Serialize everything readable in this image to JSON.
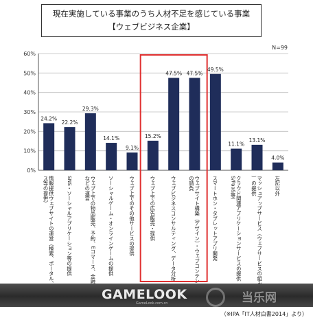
{
  "chart_data": {
    "type": "bar",
    "title": "現在実施している事業のうち人材不足を感じている事業",
    "subtitle": "【ウェブビジネス企業】",
    "n_label": "N=99",
    "ylim": [
      0,
      60
    ],
    "yticks": [
      "0%",
      "10%",
      "20%",
      "30%",
      "40%",
      "50%",
      "60%"
    ],
    "grid": true,
    "bar_color": "#1f2d5a",
    "highlight_color": "#e03030",
    "highlight_range": [
      5,
      7
    ],
    "categories": [
      "情報提供ウェブサイトの運営（検索、ポータル、ニュース等の提供）",
      "SNS・ソーシャルアプリケーション等の提供",
      "ウェブ上での物品販売、予約、Eコマース、金融サイトなどの運営",
      "ソーシャルゲーム・オンラインゲームの提供",
      "ウェブ上でのその他サービスの提供",
      "ウェブ上での広告販売・提供",
      "ウェブビジネスコンサルティング、データ分析",
      "ウェブサイト構築（デザイン）・ウェブコンテンツ制作の請負",
      "スマートホン・タブレットアプリ開発",
      "クラウド関連アプリケーションサービスの提供（SaaS/PaaS等）",
      "マッシュアップサービス（ウェブサービスの組み合わせ）の提供",
      "左記以外"
    ],
    "values": [
      24.2,
      22.2,
      29.3,
      14.1,
      9.1,
      15.2,
      47.5,
      47.5,
      49.5,
      11.1,
      13.1,
      4.0
    ],
    "value_labels": [
      "24.2%",
      "22.2%",
      "29.3%",
      "14.1%",
      "9.1%",
      "15.2%",
      "47.5%",
      "47.5%",
      "49.5%",
      "11.1%",
      "13.1%",
      "4.0%"
    ]
  },
  "watermark": {
    "logo": "GAMELOOK",
    "logo_sub": "GameLook.com.cn",
    "cn_text": "当乐网"
  },
  "source_note": "（※IPA「IT人材白書2014」より）"
}
